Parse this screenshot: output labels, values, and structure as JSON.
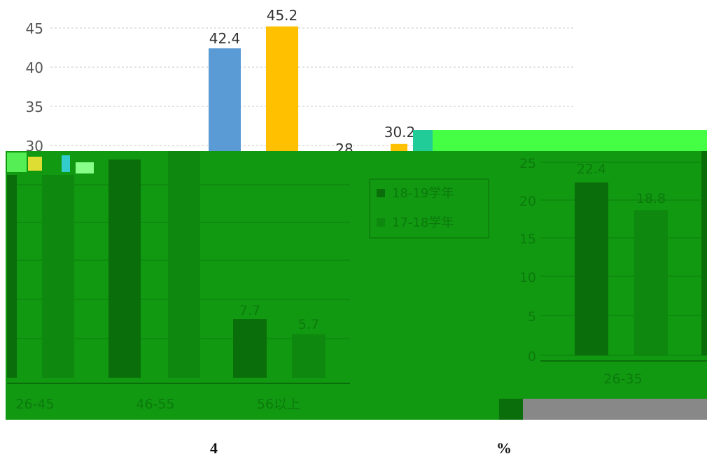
{
  "colors": {
    "series_a": "#5b9bd5",
    "series_b": "#ffc000",
    "overlay_green": "#119911",
    "overlay_dark_green": "#0a6f0a",
    "overlay_light_green": "#44ff44",
    "overlay_gray": "#888888",
    "grid": "#c8c8c8"
  },
  "chart_data": [
    {
      "type": "bar",
      "panel": "left-upper",
      "y_ticks": [
        "30",
        "35",
        "40",
        "45"
      ],
      "ylim": [
        30,
        46.5
      ],
      "grid": true,
      "series": [
        {
          "values": [
            42.4,
            30.2
          ]
        },
        {
          "values": [
            45.2,
            28
          ]
        }
      ],
      "data_labels": [
        "42.4",
        "45.2",
        "28",
        "30.2"
      ]
    },
    {
      "type": "bar",
      "panel": "left-lower",
      "categories": [
        "26-45",
        "46-55",
        "56以上"
      ],
      "series": [
        {
          "name": "18-19学年",
          "values": [
            null,
            null,
            7.7
          ]
        },
        {
          "name": "17-18学年",
          "values": [
            null,
            null,
            5.7
          ]
        }
      ],
      "data_labels": [
        "7.7",
        "5.7"
      ],
      "legend": [
        "18-19学年",
        "17-18学年"
      ],
      "legend_position": "right"
    },
    {
      "type": "bar",
      "panel": "right",
      "categories": [
        "26-35"
      ],
      "y_ticks": [
        "0",
        "5",
        "10",
        "15",
        "20",
        "25"
      ],
      "ylim": [
        0,
        25
      ],
      "grid": true,
      "series": [
        {
          "name": "18-19学年",
          "values": [
            22.4
          ]
        },
        {
          "name": "17-18学年",
          "values": [
            18.8
          ]
        }
      ],
      "data_labels": [
        "22.4",
        "18.8"
      ]
    }
  ],
  "caption": {
    "left": "4",
    "right": "%"
  }
}
